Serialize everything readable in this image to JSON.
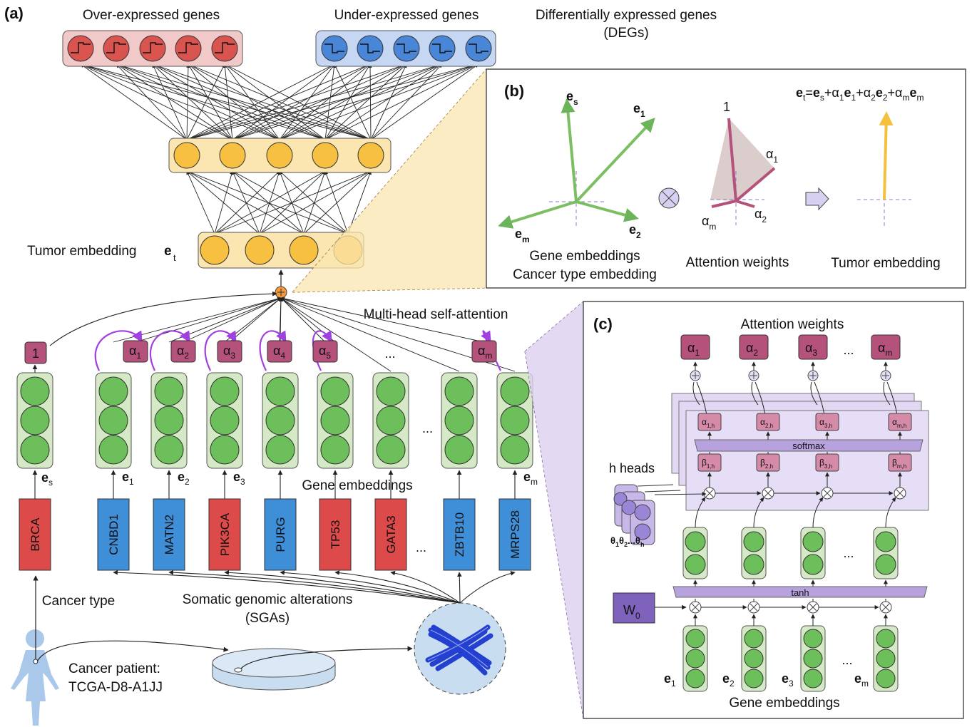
{
  "panel_a": {
    "label": "(a)",
    "over_expressed": "Over-expressed genes",
    "under_expressed": "Under-expressed genes",
    "degs_line1": "Differentially expressed genes",
    "degs_line2": "(DEGs)",
    "tumor_embedding": "Tumor embedding",
    "tumor_embedding_symbol": "e",
    "tumor_embedding_sub": "t",
    "multi_head": "Multi-head self-attention",
    "gene_embeddings": "Gene embeddings",
    "cancer_type": "Cancer type",
    "sga_line1": "Somatic genomic alterations",
    "sga_line2": "(SGAs)",
    "patient_line1": "Cancer patient:",
    "patient_line2": "TCGA-D8-A1JJ",
    "one_label": "1",
    "ellipsis": "...",
    "alphas": [
      {
        "sym": "α",
        "sub": "1"
      },
      {
        "sym": "α",
        "sub": "2"
      },
      {
        "sym": "α",
        "sub": "3"
      },
      {
        "sym": "α",
        "sub": "4"
      },
      {
        "sym": "α",
        "sub": "5"
      },
      {
        "sym": "α",
        "sub": "m"
      }
    ],
    "embedding_labels": [
      {
        "sym": "e",
        "sub": "s"
      },
      {
        "sym": "e",
        "sub": "1"
      },
      {
        "sym": "e",
        "sub": "2"
      },
      {
        "sym": "e",
        "sub": "3"
      },
      {
        "sym": "e",
        "sub": "m"
      }
    ],
    "genes": [
      {
        "name": "BRCA",
        "kind": "cancer"
      },
      {
        "name": "CNBD1",
        "kind": "blue"
      },
      {
        "name": "MATN2",
        "kind": "blue"
      },
      {
        "name": "PIK3CA",
        "kind": "red"
      },
      {
        "name": "PURG",
        "kind": "blue"
      },
      {
        "name": "TP53",
        "kind": "red"
      },
      {
        "name": "GATA3",
        "kind": "red"
      },
      {
        "name": "ZBTB10",
        "kind": "blue"
      },
      {
        "name": "MRPS28",
        "kind": "blue"
      }
    ]
  },
  "panel_b": {
    "label": "(b)",
    "formula_parts": [
      "e",
      "t",
      "=",
      "e",
      "s",
      "+α",
      "1",
      "e",
      "1",
      "+α",
      "2",
      "e",
      "2",
      "+α",
      "m",
      "e",
      "m"
    ],
    "es": {
      "sym": "e",
      "sub": "s"
    },
    "e1": {
      "sym": "e",
      "sub": "1"
    },
    "e2": {
      "sym": "e",
      "sub": "2"
    },
    "em": {
      "sym": "e",
      "sub": "m"
    },
    "one": "1",
    "a1": {
      "sym": "α",
      "sub": "1"
    },
    "a2": {
      "sym": "α",
      "sub": "2"
    },
    "am": {
      "sym": "α",
      "sub": "m"
    },
    "caption_gene": "Gene embeddings",
    "caption_cancer": "Cancer type embedding",
    "caption_attn": "Attention weights",
    "caption_tumor": "Tumor embedding"
  },
  "panel_c": {
    "label": "(c)",
    "attention_weights": "Attention weights",
    "alphas": [
      {
        "sym": "α",
        "sub": "1"
      },
      {
        "sym": "α",
        "sub": "2"
      },
      {
        "sym": "α",
        "sub": "3"
      },
      {
        "sym": "α",
        "sub": "m"
      }
    ],
    "alpha_h": [
      {
        "sym": "α",
        "sub": "1,h"
      },
      {
        "sym": "α",
        "sub": "2,h"
      },
      {
        "sym": "α",
        "sub": "3,h"
      },
      {
        "sym": "α",
        "sub": "m,h"
      }
    ],
    "beta_h": [
      {
        "sym": "β",
        "sub": "1,h"
      },
      {
        "sym": "β",
        "sub": "2,h"
      },
      {
        "sym": "β",
        "sub": "3,h"
      },
      {
        "sym": "β",
        "sub": "m,h"
      }
    ],
    "softmax": "softmax",
    "tanh": "tanh",
    "h_heads": "h heads",
    "theta_parts": [
      "θ",
      "1",
      "θ",
      "2",
      "...θ",
      "h"
    ],
    "w0": {
      "sym": "W",
      "sub": "0"
    },
    "gene_labels": [
      {
        "sym": "e",
        "sub": "1"
      },
      {
        "sym": "e",
        "sub": "2"
      },
      {
        "sym": "e",
        "sub": "3"
      },
      {
        "sym": "e",
        "sub": "m"
      }
    ],
    "gene_embeddings": "Gene embeddings",
    "ellipsis": "..."
  },
  "colors": {
    "red_node": "#d9534f",
    "red_box": "#f2c9c9",
    "blue_node": "#4a86d8",
    "blue_box": "#c5d7f2",
    "yellow_node": "#f8c040",
    "yellow_box": "#fbe5b0",
    "green_node": "#6cbf5a",
    "green_box": "#d6e9c6",
    "mauve": "#b5527c",
    "purple_arc": "#a040e0",
    "gene_red": "#dc4a4a",
    "gene_blue": "#3e8ed8",
    "lavender": "#cbbde8",
    "orange_dot": "#f49a3a"
  }
}
